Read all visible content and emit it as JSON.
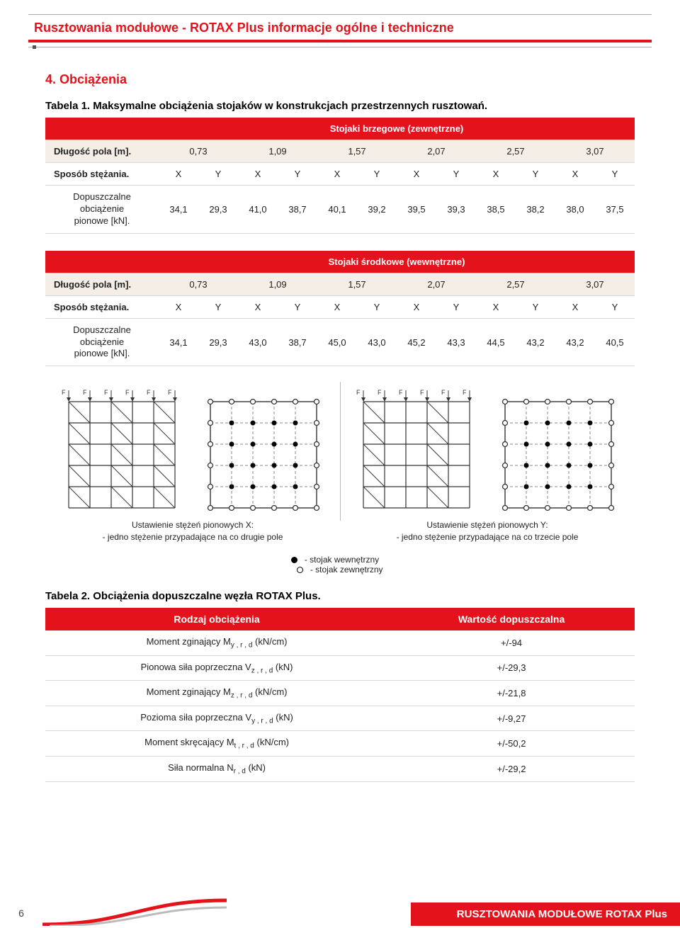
{
  "header": {
    "title": "Rusztowania modułowe - ROTAX Plus informacje ogólne i techniczne"
  },
  "section_number": "4. Obciążenia",
  "table1": {
    "caption": "Tabela 1. Maksymalne obciążenia stojaków w konstrukcjach przestrzennych rusztowań.",
    "hdr_outer": "Stojaki brzegowe (zewnętrzne)",
    "hdr_inner": "Stojaki środkowe (wewnętrzne)",
    "row_len_label": "Długość pola [m].",
    "row_len_values": [
      "0,73",
      "1,09",
      "1,57",
      "2,07",
      "2,57",
      "3,07"
    ],
    "row_mode_label": "Sposób stężania.",
    "row_mode_values": [
      "X",
      "Y",
      "X",
      "Y",
      "X",
      "Y",
      "X",
      "Y",
      "X",
      "Y",
      "X",
      "Y"
    ],
    "row_load_label_l1": "Dopuszczalne",
    "row_load_label_l2": "obciążenie",
    "row_load_label_l3": "pionowe [kN].",
    "outer_values": [
      "34,1",
      "29,3",
      "41,0",
      "38,7",
      "40,1",
      "39,2",
      "39,5",
      "39,3",
      "38,5",
      "38,2",
      "38,0",
      "37,5"
    ],
    "inner_values": [
      "34,1",
      "29,3",
      "43,0",
      "38,7",
      "45,0",
      "43,0",
      "45,2",
      "43,3",
      "44,5",
      "43,2",
      "43,2",
      "40,5"
    ]
  },
  "diagrams": {
    "f_label": "F",
    "caption_x_l1": "Ustawienie stężeń pionowych X:",
    "caption_x_l2": "- jedno stężenie przypadające na co drugie pole",
    "caption_y_l1": "Ustawienie stężeń pionowych Y:",
    "caption_y_l2": "- jedno stężenie przypadające na co trzecie pole",
    "legend_inner": "- stojak wewnętrzny",
    "legend_outer": "- stojak zewnętrzny",
    "grid": {
      "rows": 5,
      "cols": 5,
      "cell": 30
    },
    "colors": {
      "structural": "#333333",
      "dashed": "#888888",
      "node_outer_stroke": "#333333",
      "node_inner_fill": "#000000"
    }
  },
  "table2": {
    "caption": "Tabela 2. Obciążenia dopuszczalne węzła ROTAX Plus.",
    "hdr_type": "Rodzaj obciążenia",
    "hdr_value": "Wartość dopuszczalna",
    "rows": [
      {
        "label": "Moment zginający M",
        "sub": "y , r , d",
        "suffix": " (kN/cm)",
        "value": "+/-94"
      },
      {
        "label": "Pionowa siła poprzeczna V",
        "sub": "z , r , d",
        "suffix": " (kN)",
        "value": "+/-29,3"
      },
      {
        "label": "Moment zginający M",
        "sub": "z , r , d",
        "suffix": " (kN/cm)",
        "value": "+/-21,8"
      },
      {
        "label": "Pozioma siła poprzeczna V",
        "sub": "y , r , d",
        "suffix": " (kN)",
        "value": "+/-9,27"
      },
      {
        "label": "Moment skręcający M",
        "sub": "t , r , d",
        "suffix": " (kN/cm)",
        "value": "+/-50,2"
      },
      {
        "label": "Siła normalna N",
        "sub": "r , d",
        "suffix": " (kN)",
        "value": "+/-29,2"
      }
    ]
  },
  "footer": {
    "page": "6",
    "product": "RUSZTOWANIA MODUŁOWE ROTAX Plus"
  }
}
